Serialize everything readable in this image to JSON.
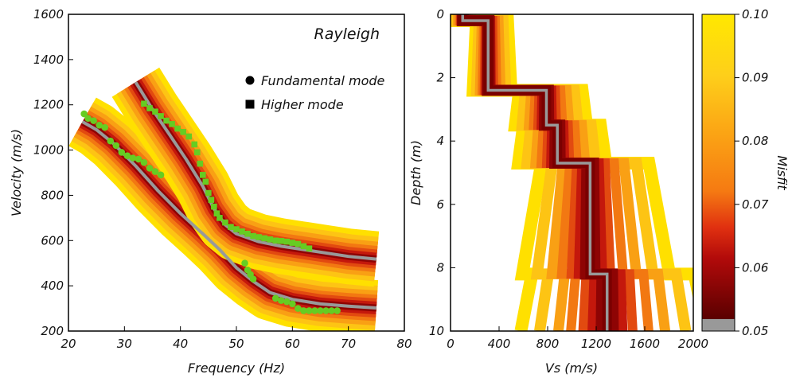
{
  "chart_data": [
    {
      "type": "line",
      "panel": "dispersion",
      "title": "Rayleigh",
      "xlabel": "Frequency (Hz)",
      "ylabel": "Velocity (m/s)",
      "xlim": [
        20,
        80
      ],
      "ylim": [
        200,
        1600
      ],
      "xticks": [
        "20",
        "30",
        "40",
        "50",
        "60",
        "70",
        "80"
      ],
      "yticks": [
        "200",
        "400",
        "600",
        "800",
        "1000",
        "1200",
        "1400",
        "1600"
      ],
      "legend": [
        {
          "marker": "circle",
          "label": "Fundamental mode"
        },
        {
          "marker": "square",
          "label": "Higher mode"
        }
      ],
      "series": [
        {
          "mode": "fundamental",
          "best_model": [
            [
              22.5,
              1125
            ],
            [
              25,
              1090
            ],
            [
              28,
              1030
            ],
            [
              32,
              930
            ],
            [
              36,
              820
            ],
            [
              40,
              720
            ],
            [
              44,
              630
            ],
            [
              47,
              560
            ],
            [
              50,
              480
            ],
            [
              53,
              420
            ],
            [
              56,
              370
            ],
            [
              60,
              340
            ],
            [
              65,
              320
            ],
            [
              70,
              310
            ],
            [
              75,
              302
            ]
          ],
          "observed": [
            [
              22.8,
              1160
            ],
            [
              23.5,
              1140
            ],
            [
              24.5,
              1130
            ],
            [
              25.5,
              1110
            ],
            [
              26.5,
              1100
            ],
            [
              27.5,
              1040
            ],
            [
              28.5,
              1020
            ],
            [
              29.5,
              990
            ],
            [
              30.5,
              975
            ],
            [
              31.5,
              965
            ],
            [
              32.5,
              960
            ],
            [
              33.5,
              945
            ],
            [
              34.5,
              920
            ],
            [
              35.5,
              905
            ],
            [
              36.5,
              890
            ],
            [
              51.5,
              500
            ],
            [
              52,
              470
            ],
            [
              52.5,
              450
            ],
            [
              53,
              430
            ],
            [
              57,
              345
            ],
            [
              58,
              335
            ],
            [
              59,
              330
            ],
            [
              60,
              320
            ],
            [
              61,
              300
            ],
            [
              62,
              290
            ],
            [
              63,
              290
            ],
            [
              64,
              290
            ],
            [
              65,
              290
            ],
            [
              66,
              290
            ],
            [
              67,
              290
            ],
            [
              68,
              290
            ]
          ]
        },
        {
          "mode": "higher",
          "best_model": [
            [
              32,
              1300
            ],
            [
              35,
              1180
            ],
            [
              38,
              1070
            ],
            [
              41,
              960
            ],
            [
              44,
              840
            ],
            [
              46,
              740
            ],
            [
              48,
              670
            ],
            [
              50,
              630
            ],
            [
              54,
              595
            ],
            [
              58,
              575
            ],
            [
              62,
              560
            ],
            [
              66,
              545
            ],
            [
              70,
              530
            ],
            [
              75,
              518
            ]
          ],
          "observed": [
            [
              33.5,
              1205
            ],
            [
              34.5,
              1185
            ],
            [
              35.5,
              1170
            ],
            [
              36.5,
              1150
            ],
            [
              37.5,
              1130
            ],
            [
              38.5,
              1115
            ],
            [
              39.5,
              1095
            ],
            [
              40.5,
              1080
            ],
            [
              41.5,
              1060
            ],
            [
              42.5,
              1025
            ],
            [
              43,
              990
            ],
            [
              43.5,
              940
            ],
            [
              44,
              890
            ],
            [
              44.5,
              860
            ],
            [
              45,
              810
            ],
            [
              45.5,
              780
            ],
            [
              46,
              750
            ],
            [
              46.5,
              720
            ],
            [
              47,
              700
            ],
            [
              48,
              680
            ],
            [
              49,
              660
            ],
            [
              50,
              650
            ],
            [
              51,
              640
            ],
            [
              52,
              630
            ],
            [
              53,
              620
            ],
            [
              54,
              615
            ],
            [
              55,
              610
            ],
            [
              56,
              605
            ],
            [
              57,
              600
            ],
            [
              58,
              598
            ],
            [
              59,
              595
            ],
            [
              60,
              590
            ],
            [
              61,
              585
            ],
            [
              62,
              575
            ],
            [
              63,
              565
            ]
          ]
        }
      ]
    },
    {
      "type": "line",
      "panel": "velocity-profile",
      "xlabel": "Vs (m/s)",
      "ylabel": "Depth (m)",
      "xlim": [
        0,
        2000
      ],
      "ylim": [
        10,
        0
      ],
      "xticks": [
        "0",
        "400",
        "800",
        "1200",
        "1600",
        "2000"
      ],
      "yticks": [
        "0",
        "2",
        "4",
        "6",
        "8",
        "10"
      ],
      "best_model": [
        [
          100,
          0
        ],
        [
          100,
          0.2
        ],
        [
          310,
          0.2
        ],
        [
          310,
          2.4
        ],
        [
          790,
          2.4
        ],
        [
          790,
          3.5
        ],
        [
          880,
          3.5
        ],
        [
          880,
          4.7
        ],
        [
          1150,
          4.7
        ],
        [
          1150,
          8.2
        ],
        [
          1290,
          8.2
        ],
        [
          1290,
          10
        ]
      ]
    }
  ],
  "colorbar": {
    "label": "Misfit",
    "range": [
      0.05,
      0.1
    ],
    "ticks": [
      "0.05",
      "0.06",
      "0.07",
      "0.08",
      "0.09",
      "0.10"
    ]
  },
  "colors": {
    "best_model": "#999999",
    "observed": "#66cc22",
    "misfit_low": "#6a0000",
    "misfit_high": "#ffe800"
  }
}
